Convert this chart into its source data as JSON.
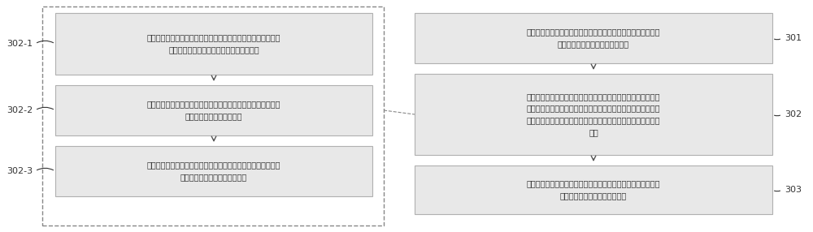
{
  "bg_color": "#ffffff",
  "box_border_color": "#b0b0b0",
  "box_fill_color": "#e8e8e8",
  "dashed_border_color": "#888888",
  "arrow_color": "#555555",
  "text_color": "#333333",
  "label_color": "#333333",
  "left_boxes": [
    {
      "label": "302-1",
      "text": "根据报价数据，获取与检测时间对应的市场出清价格和目标发电\n商在检测时间对应的时间范围内的实际报价"
    },
    {
      "label": "302-2",
      "text": "将检测时间和市场出清价格输入至勒纳指数预测子模型，获得目\n标发电商的勒纳指数预测值"
    },
    {
      "label": "302-3",
      "text": "将检测时间和实际报价输入至行为影响测试预测子模型，获得目\n标发电商的行为影响测试预测值"
    }
  ],
  "right_boxes": [
    {
      "label": "301",
      "text": "获取目标发电商的待检测数据；其中，待检测数据信息包括检测\n时间和与检测时间对应的报价数据"
    },
    {
      "label": "302",
      "text": "将待检测数据输入至预设的指数预测模型，获得目标发电商的指\n数预测数据；其中，指数预测模型已学习得到基于检测时间和报\n价数据，预测所述目标发电商的勒纳指数值和行为影响测试值的\n能力"
    },
    {
      "label": "303",
      "text": "将指数预测数据中的各指数值进行加权平均，以检测目标发电商\n在检测时间下是否存在持留行为"
    }
  ],
  "font_size": 7.0,
  "label_font_size": 8.0,
  "fig_width": 10.0,
  "fig_height": 2.86,
  "dpi": 100
}
